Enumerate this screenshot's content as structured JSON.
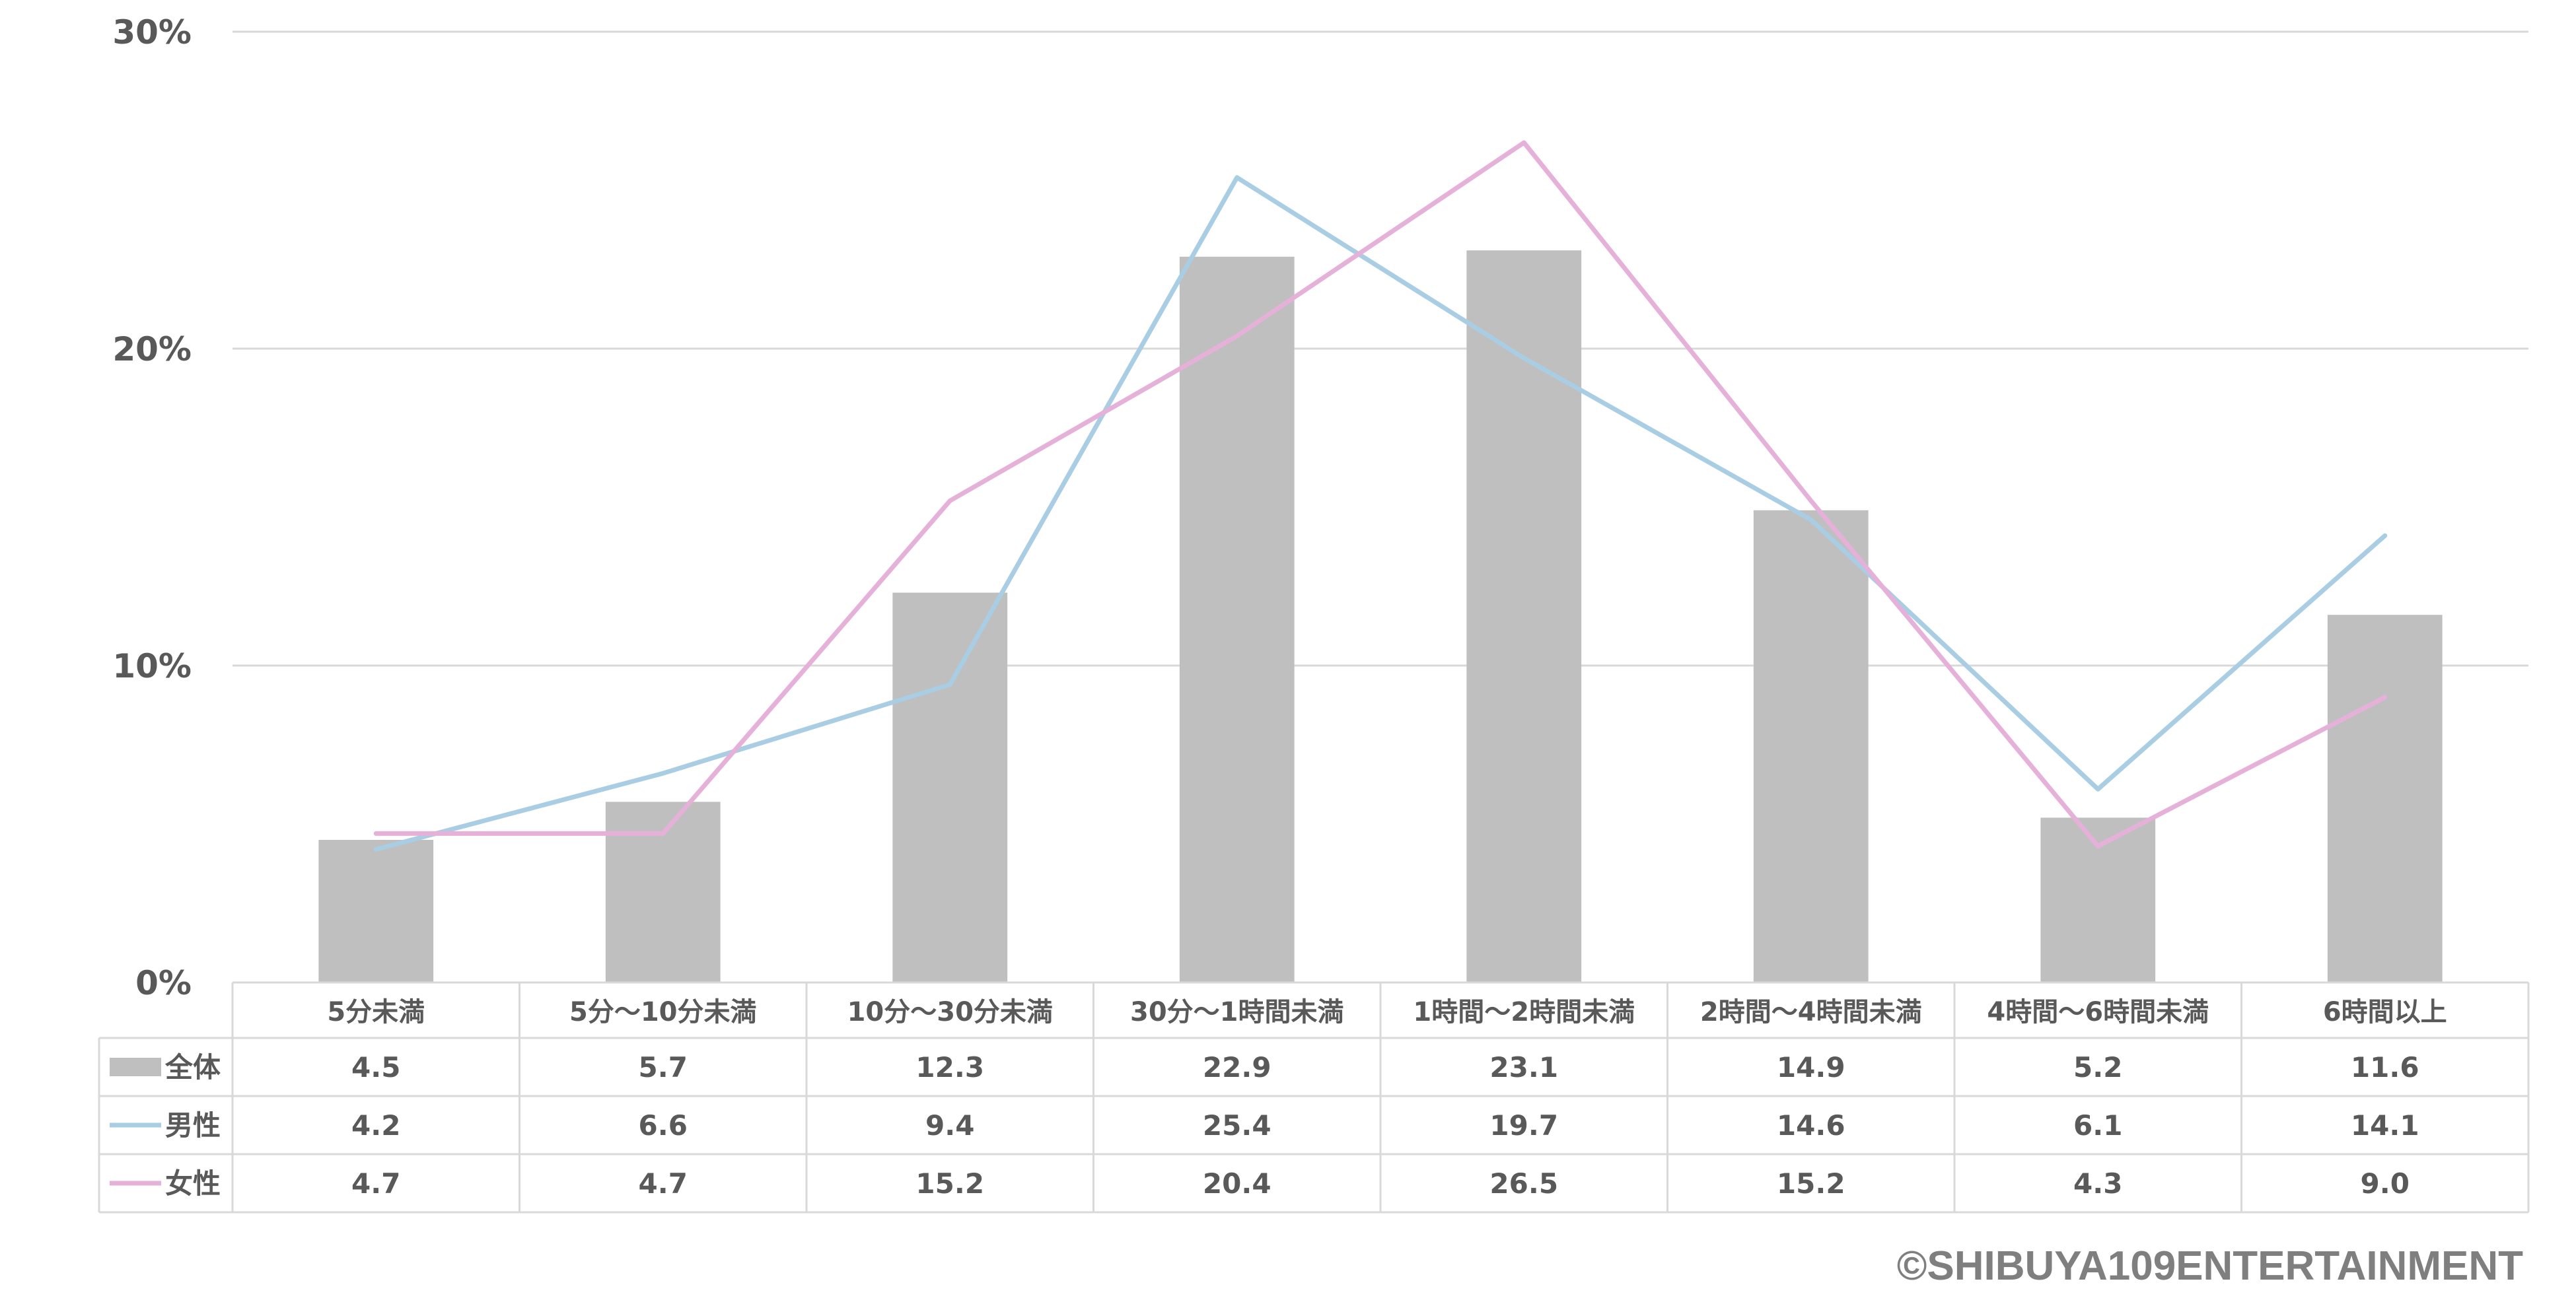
{
  "chart_data": {
    "type": "bar+line",
    "categories": [
      "5分未満",
      "5分〜10分未満",
      "10分〜30分未満",
      "30分〜1時間未満",
      "1時間〜2時間未満",
      "2時間〜4時間未満",
      "4時間〜6時間未満",
      "6時間以上"
    ],
    "series": [
      {
        "name": "全体",
        "kind": "bar",
        "color": "#bfbfbf",
        "values": [
          4.5,
          5.7,
          12.3,
          22.9,
          23.1,
          14.9,
          5.2,
          11.6
        ]
      },
      {
        "name": "男性",
        "kind": "line",
        "color": "#a9cde3",
        "values": [
          4.2,
          6.6,
          9.4,
          25.4,
          19.7,
          14.6,
          6.1,
          14.1
        ]
      },
      {
        "name": "女性",
        "kind": "line",
        "color": "#e6b1d8",
        "values": [
          4.7,
          4.7,
          15.2,
          20.4,
          26.5,
          15.2,
          4.3,
          9.0
        ]
      }
    ],
    "yticks": [
      0,
      10,
      20,
      30
    ],
    "ytick_labels": [
      "0%",
      "10%",
      "20%",
      "30%"
    ],
    "ylim": [
      0,
      30
    ],
    "value_format": "0.1",
    "grid": true,
    "data_table": true
  },
  "copyright": "©SHIBUYA109ENTERTAINMENT"
}
